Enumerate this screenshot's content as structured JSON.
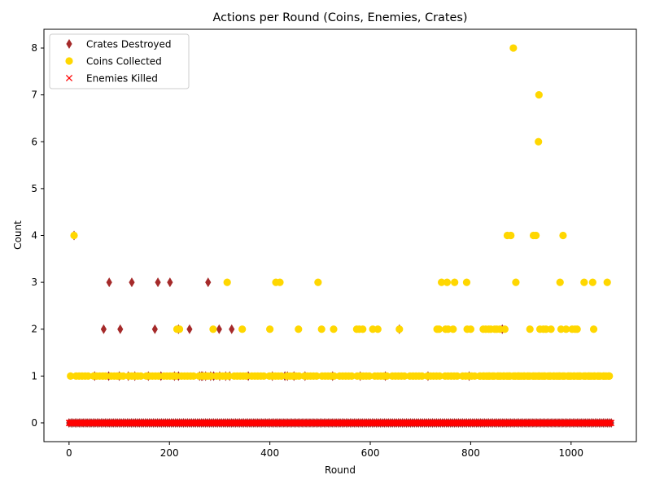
{
  "chart_data": {
    "type": "scatter",
    "title": "Actions per Round (Coins, Enemies, Crates)",
    "xlabel": "Round",
    "ylabel": "Count",
    "xlim": [
      -50,
      1130
    ],
    "ylim": [
      -0.4,
      8.4
    ],
    "xticks": [
      0,
      200,
      400,
      600,
      800,
      1000
    ],
    "yticks": [
      0,
      1,
      2,
      3,
      4,
      5,
      6,
      7,
      8
    ],
    "x_range_rounds": [
      0,
      1080
    ],
    "grid": false,
    "legend_position": "upper left",
    "series": [
      {
        "name": "Crates Destroyed",
        "marker": "thin_diamond",
        "color": "#a52a2a",
        "points": [
          [
            10,
            4
          ],
          [
            51,
            1
          ],
          [
            79,
            1
          ],
          [
            100,
            1
          ],
          [
            118,
            1
          ],
          [
            131,
            1
          ],
          [
            158,
            1
          ],
          [
            183,
            1
          ],
          [
            210,
            1
          ],
          [
            218,
            1
          ],
          [
            260,
            1
          ],
          [
            264,
            1
          ],
          [
            266,
            1
          ],
          [
            272,
            1
          ],
          [
            282,
            1
          ],
          [
            288,
            1
          ],
          [
            300,
            1
          ],
          [
            312,
            1
          ],
          [
            320,
            1
          ],
          [
            357,
            1
          ],
          [
            405,
            1
          ],
          [
            430,
            1
          ],
          [
            435,
            1
          ],
          [
            448,
            1
          ],
          [
            470,
            1
          ],
          [
            525,
            1
          ],
          [
            580,
            1
          ],
          [
            630,
            1
          ],
          [
            715,
            1
          ],
          [
            797,
            1
          ],
          [
            69,
            2
          ],
          [
            102,
            2
          ],
          [
            171,
            2
          ],
          [
            218,
            2
          ],
          [
            240,
            2
          ],
          [
            299,
            2
          ],
          [
            324,
            2
          ],
          [
            658,
            2
          ],
          [
            863,
            2
          ],
          [
            80,
            3
          ],
          [
            125,
            3
          ],
          [
            177,
            3
          ],
          [
            201,
            3
          ],
          [
            277,
            3
          ]
        ]
      },
      {
        "name": "Coins Collected",
        "marker": "circle",
        "color": "#ffd700",
        "points": [
          [
            10,
            4
          ],
          [
            873,
            4
          ],
          [
            880,
            4
          ],
          [
            925,
            4
          ],
          [
            930,
            4
          ],
          [
            984,
            4
          ],
          [
            885,
            8
          ],
          [
            936,
            7
          ],
          [
            935,
            6
          ],
          [
            315,
            3
          ],
          [
            412,
            3
          ],
          [
            420,
            3
          ],
          [
            496,
            3
          ],
          [
            742,
            3
          ],
          [
            753,
            3
          ],
          [
            768,
            3
          ],
          [
            792,
            3
          ],
          [
            890,
            3
          ],
          [
            978,
            3
          ],
          [
            1026,
            3
          ],
          [
            1043,
            3
          ],
          [
            1072,
            3
          ],
          [
            215,
            2
          ],
          [
            220,
            2
          ],
          [
            287,
            2
          ],
          [
            345,
            2
          ],
          [
            400,
            2
          ],
          [
            457,
            2
          ],
          [
            503,
            2
          ],
          [
            527,
            2
          ],
          [
            573,
            2
          ],
          [
            578,
            2
          ],
          [
            585,
            2
          ],
          [
            605,
            2
          ],
          [
            615,
            2
          ],
          [
            658,
            2
          ],
          [
            733,
            2
          ],
          [
            737,
            2
          ],
          [
            750,
            2
          ],
          [
            755,
            2
          ],
          [
            765,
            2
          ],
          [
            793,
            2
          ],
          [
            800,
            2
          ],
          [
            825,
            2
          ],
          [
            830,
            2
          ],
          [
            836,
            2
          ],
          [
            840,
            2
          ],
          [
            848,
            2
          ],
          [
            852,
            2
          ],
          [
            858,
            2
          ],
          [
            868,
            2
          ],
          [
            918,
            2
          ],
          [
            938,
            2
          ],
          [
            945,
            2
          ],
          [
            950,
            2
          ],
          [
            960,
            2
          ],
          [
            980,
            2
          ],
          [
            990,
            2
          ],
          [
            1002,
            2
          ],
          [
            1008,
            2
          ],
          [
            1012,
            2
          ],
          [
            1045,
            2
          ]
        ],
        "dense_row_y1": [
          [
            5,
            1080,
            7
          ],
          [
            820,
            1078,
            4
          ]
        ]
      },
      {
        "name": "Enemies Killed",
        "marker": "x",
        "color": "#ff0000",
        "row_y0": [
          0,
          1080,
          2
        ]
      }
    ],
    "crates_row_y0": [
      0,
      1080,
      4
    ]
  }
}
